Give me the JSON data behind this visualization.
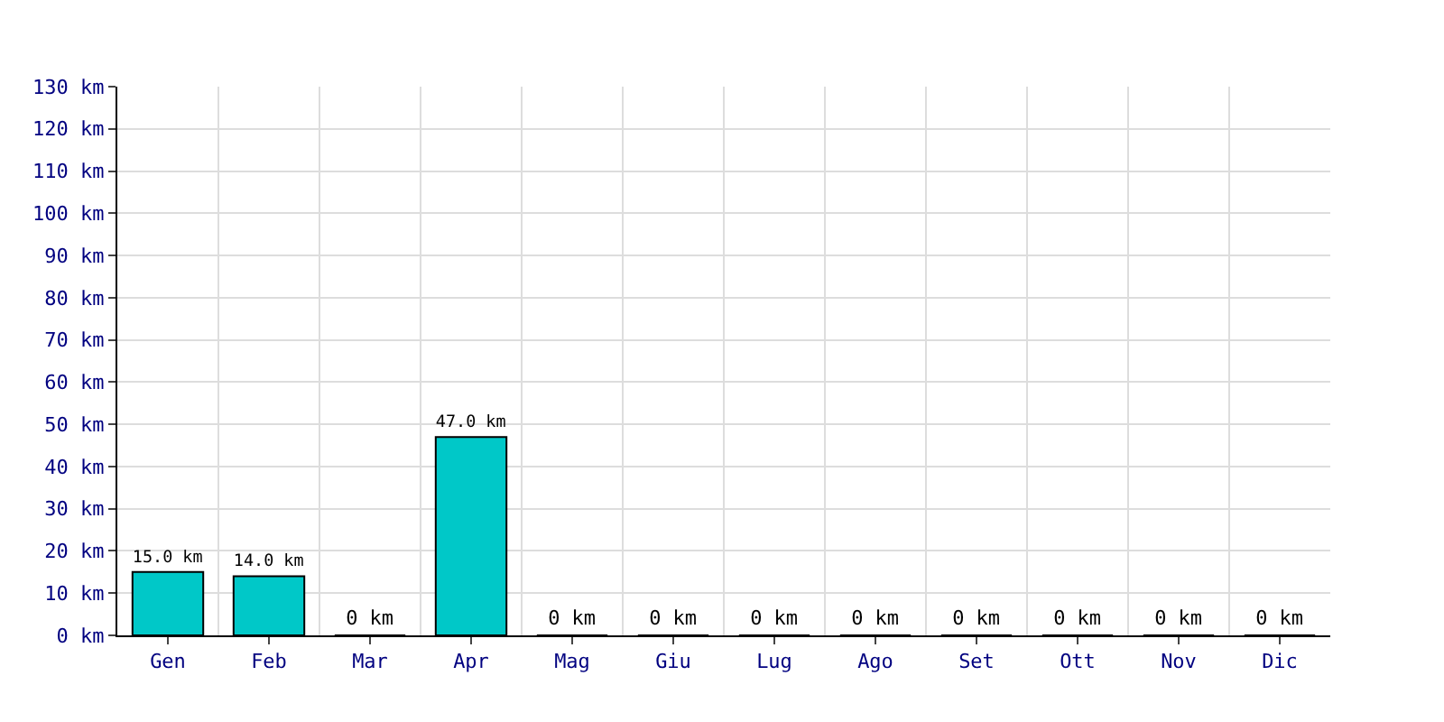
{
  "chart_data": {
    "type": "bar",
    "categories": [
      "Gen",
      "Feb",
      "Mar",
      "Apr",
      "Mag",
      "Giu",
      "Lug",
      "Ago",
      "Set",
      "Ott",
      "Nov",
      "Dic"
    ],
    "values": [
      15,
      14,
      0,
      47,
      0,
      0,
      0,
      0,
      0,
      0,
      0,
      0
    ],
    "value_labels": [
      "15.0 km",
      "14.0 km",
      "0 km",
      "47.0 km",
      "0 km",
      "0 km",
      "0 km",
      "0 km",
      "0 km",
      "0 km",
      "0 km",
      "0 km"
    ],
    "color": "#00c8c8",
    "ylim": [
      0,
      130
    ],
    "yticks": [
      {
        "value": 0,
        "label": "0 km"
      },
      {
        "value": 10,
        "label": "10 km"
      },
      {
        "value": 20,
        "label": "20 km"
      },
      {
        "value": 30,
        "label": "30 km"
      },
      {
        "value": 40,
        "label": "40 km"
      },
      {
        "value": 50,
        "label": "50 km"
      },
      {
        "value": 60,
        "label": "60 km"
      },
      {
        "value": 70,
        "label": "70 km"
      },
      {
        "value": 80,
        "label": "80 km"
      },
      {
        "value": 90,
        "label": "90 km"
      },
      {
        "value": 100,
        "label": "100 km"
      },
      {
        "value": 110,
        "label": "110 km"
      },
      {
        "value": 120,
        "label": "120 km"
      },
      {
        "value": 130,
        "label": "130 km"
      }
    ],
    "grid": true
  }
}
